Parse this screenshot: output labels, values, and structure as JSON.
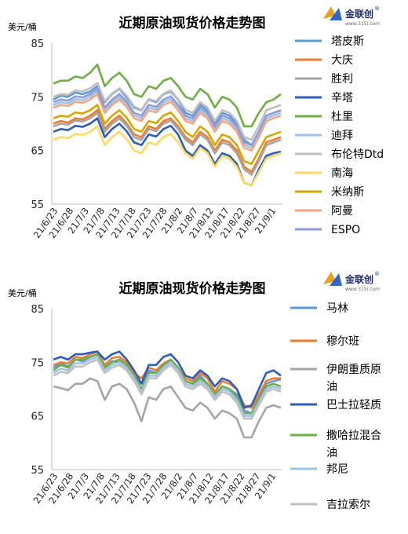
{
  "brand": {
    "name": "金联创",
    "registered": "®",
    "url": "www.315i.com"
  },
  "chart_data": [
    {
      "type": "line",
      "title": "近期原油现货价格走势图",
      "ylabel": "美元/桶",
      "ylim": [
        55,
        85
      ],
      "yticks": [
        55,
        65,
        75,
        85
      ],
      "xtick_labels": [
        "21/6/23",
        "21/6/28",
        "21/7/3",
        "21/7/8",
        "21/7/13",
        "21/7/18",
        "21/7/23",
        "21/7/28",
        "21/8/2",
        "21/8/7",
        "21/8/12",
        "21/8/17",
        "21/8/22",
        "21/8/27",
        "21/9/1"
      ],
      "legend_position": "right",
      "series": [
        {
          "name": "塔皮斯",
          "color": "#5b9bd5",
          "values": [
            74.5,
            75.2,
            75.0,
            75.8,
            75.5,
            76.0,
            77.0,
            74.0,
            75.5,
            76.5,
            74.8,
            73.0,
            72.5,
            74.5,
            74.0,
            75.5,
            76.0,
            74.5,
            72.0,
            71.5,
            73.5,
            72.5,
            70.0,
            72.0,
            71.5,
            70.0,
            67.0,
            66.0,
            68.5,
            71.5,
            72.0,
            72.5
          ]
        },
        {
          "name": "大庆",
          "color": "#ed7d31",
          "values": [
            70.0,
            70.5,
            70.2,
            71.0,
            70.8,
            71.5,
            72.5,
            69.0,
            70.5,
            71.5,
            70.0,
            68.0,
            67.5,
            69.5,
            69.0,
            70.5,
            71.0,
            69.5,
            67.5,
            66.5,
            68.5,
            67.5,
            65.0,
            67.0,
            66.5,
            65.0,
            62.0,
            61.0,
            63.5,
            66.5,
            67.0,
            67.5
          ]
        },
        {
          "name": "胜利",
          "color": "#a5a5a5",
          "values": [
            69.5,
            70.0,
            69.8,
            70.6,
            70.4,
            71.0,
            72.0,
            68.5,
            70.0,
            71.0,
            69.6,
            67.5,
            67.0,
            69.0,
            68.6,
            70.0,
            70.6,
            69.0,
            67.0,
            66.0,
            68.0,
            67.0,
            64.5,
            66.5,
            66.0,
            64.5,
            61.5,
            60.5,
            63.0,
            66.0,
            66.5,
            67.0
          ]
        },
        {
          "name": "辛塔",
          "color": "#2e5cb8",
          "values": [
            68.5,
            69.0,
            68.8,
            69.6,
            69.4,
            70.0,
            71.0,
            67.5,
            69.0,
            70.0,
            68.6,
            66.5,
            66.0,
            68.0,
            67.6,
            69.0,
            69.6,
            68.0,
            65.0,
            64.0,
            66.0,
            65.0,
            62.5,
            64.5,
            64.0,
            62.5,
            59.0,
            58.5,
            61.5,
            64.0,
            64.5,
            64.8
          ]
        },
        {
          "name": "杜里",
          "color": "#70ad47",
          "values": [
            77.5,
            78.0,
            78.0,
            78.8,
            78.5,
            79.5,
            81.0,
            77.0,
            78.5,
            79.5,
            78.0,
            75.5,
            75.0,
            77.0,
            76.5,
            78.0,
            78.5,
            77.0,
            75.0,
            74.5,
            76.5,
            75.5,
            73.0,
            75.0,
            74.5,
            73.0,
            69.5,
            69.5,
            72.0,
            74.0,
            74.5,
            75.5
          ]
        },
        {
          "name": "迪拜",
          "color": "#9dc3e6",
          "values": [
            73.5,
            74.0,
            73.8,
            74.6,
            74.4,
            75.0,
            76.0,
            72.5,
            74.0,
            75.0,
            73.6,
            71.5,
            71.0,
            73.0,
            72.6,
            74.0,
            74.6,
            73.0,
            71.0,
            70.5,
            72.5,
            71.5,
            69.0,
            71.0,
            70.5,
            69.0,
            66.0,
            65.5,
            68.0,
            71.0,
            71.5,
            72.0
          ]
        },
        {
          "name": "布伦特Dtd",
          "color": "#bfbfbf",
          "values": [
            75.0,
            75.5,
            75.4,
            76.2,
            76.0,
            76.6,
            77.6,
            74.2,
            75.6,
            76.6,
            75.2,
            73.2,
            72.6,
            74.6,
            74.2,
            75.6,
            76.2,
            74.6,
            72.6,
            72.0,
            74.0,
            73.0,
            70.5,
            72.5,
            72.0,
            70.5,
            67.5,
            67.0,
            69.5,
            72.5,
            73.0,
            73.5
          ]
        },
        {
          "name": "南海",
          "color": "#ffd966",
          "values": [
            67.0,
            67.5,
            67.3,
            68.1,
            67.9,
            68.5,
            69.5,
            66.0,
            67.5,
            68.5,
            67.1,
            65.0,
            64.5,
            66.5,
            66.1,
            67.5,
            68.1,
            66.5,
            64.5,
            63.5,
            65.5,
            64.5,
            62.0,
            64.0,
            63.5,
            62.0,
            59.0,
            58.5,
            61.0,
            63.5,
            64.0,
            64.5
          ]
        },
        {
          "name": "米纳斯",
          "color": "#d6a600",
          "values": [
            71.0,
            71.5,
            71.3,
            72.1,
            71.9,
            72.5,
            73.5,
            70.0,
            71.5,
            72.5,
            71.1,
            69.0,
            68.5,
            70.5,
            70.1,
            71.5,
            72.1,
            70.5,
            68.5,
            67.5,
            69.5,
            68.5,
            66.0,
            68.0,
            67.5,
            66.0,
            63.0,
            62.5,
            65.0,
            67.5,
            68.0,
            68.5
          ]
        },
        {
          "name": "阿曼",
          "color": "#f4a582",
          "values": [
            73.0,
            73.5,
            73.3,
            74.1,
            73.9,
            74.5,
            75.5,
            72.0,
            73.5,
            74.5,
            73.1,
            71.0,
            70.5,
            72.5,
            72.1,
            73.5,
            74.1,
            72.5,
            70.5,
            70.0,
            72.0,
            71.0,
            68.5,
            70.5,
            70.0,
            68.5,
            65.5,
            65.0,
            67.5,
            70.5,
            71.0,
            71.5
          ]
        },
        {
          "name": "ESPO",
          "color": "#8e9bd9",
          "values": [
            74.0,
            74.5,
            74.3,
            75.1,
            74.9,
            75.5,
            76.5,
            73.0,
            74.5,
            75.5,
            74.1,
            72.0,
            71.5,
            73.5,
            73.1,
            74.5,
            75.1,
            73.5,
            71.5,
            71.0,
            73.0,
            72.0,
            69.5,
            71.5,
            71.0,
            69.5,
            66.5,
            66.0,
            68.5,
            71.5,
            72.0,
            72.5
          ]
        }
      ]
    },
    {
      "type": "line",
      "title": "近期原油现货价格走势图",
      "ylabel": "美元/桶",
      "ylim": [
        55,
        85
      ],
      "yticks": [
        55,
        65,
        75,
        85
      ],
      "xtick_labels": [
        "21/6/23",
        "21/6/28",
        "21/7/3",
        "21/7/8",
        "21/7/13",
        "21/7/18",
        "21/7/23",
        "21/7/28",
        "21/8/2",
        "21/8/7",
        "21/8/12",
        "21/8/17",
        "21/8/22",
        "21/8/27",
        "21/9/1"
      ],
      "legend_position": "right",
      "series": [
        {
          "name": "马林",
          "color": "#5b9bd5",
          "values": [
            74.0,
            74.8,
            74.2,
            75.5,
            75.2,
            76.0,
            76.5,
            74.0,
            75.2,
            75.0,
            74.0,
            72.5,
            71.0,
            73.5,
            73.0,
            74.0,
            75.0,
            73.5,
            71.5,
            71.0,
            72.5,
            71.0,
            69.0,
            70.5,
            70.0,
            69.0,
            66.0,
            65.5,
            68.5,
            71.0,
            71.5,
            71.8
          ]
        },
        {
          "name": "穆尔班",
          "color": "#ed7d31",
          "values": [
            74.5,
            75.0,
            74.8,
            76.0,
            75.8,
            76.5,
            77.0,
            74.5,
            75.8,
            76.0,
            75.0,
            73.0,
            72.0,
            74.0,
            73.5,
            74.8,
            75.5,
            74.0,
            72.0,
            71.5,
            73.0,
            72.0,
            69.5,
            71.5,
            71.0,
            70.0,
            67.0,
            66.5,
            69.0,
            71.5,
            72.0,
            72.0
          ]
        },
        {
          "name": "伊朗重质原油",
          "color": "#a5a5a5",
          "values": [
            70.5,
            70.2,
            69.8,
            71.0,
            71.0,
            72.0,
            71.5,
            68.0,
            70.5,
            71.0,
            70.0,
            67.5,
            64.0,
            68.5,
            68.0,
            70.0,
            70.5,
            68.5,
            66.5,
            66.0,
            67.5,
            66.5,
            64.5,
            66.0,
            65.5,
            64.5,
            61.0,
            61.0,
            64.0,
            66.5,
            67.0,
            66.5
          ]
        },
        {
          "name": "巴士拉轻质",
          "color": "#2e5cb8",
          "values": [
            75.5,
            76.0,
            75.5,
            76.5,
            76.5,
            76.8,
            77.0,
            75.5,
            76.5,
            77.0,
            75.5,
            73.5,
            71.0,
            74.5,
            74.5,
            76.0,
            76.5,
            75.0,
            72.5,
            72.0,
            73.5,
            72.5,
            70.5,
            72.0,
            71.5,
            70.0,
            66.5,
            67.0,
            70.0,
            73.0,
            73.5,
            72.5
          ]
        },
        {
          "name": "撒哈拉混合油",
          "color": "#70ad47",
          "values": [
            73.5,
            74.5,
            74.0,
            75.5,
            75.5,
            76.0,
            76.5,
            74.0,
            75.0,
            75.5,
            74.5,
            72.5,
            70.0,
            73.0,
            73.0,
            74.5,
            75.5,
            74.0,
            71.5,
            71.0,
            72.0,
            71.0,
            69.0,
            70.5,
            70.0,
            68.5,
            65.5,
            65.5,
            68.0,
            70.5,
            71.0,
            70.5
          ]
        },
        {
          "name": "邦尼",
          "color": "#9dc3e6",
          "values": [
            73.0,
            73.8,
            73.5,
            74.8,
            74.8,
            75.5,
            76.0,
            73.5,
            74.5,
            75.0,
            74.0,
            72.0,
            69.5,
            72.5,
            72.5,
            74.0,
            75.0,
            73.5,
            71.0,
            70.5,
            71.5,
            70.5,
            68.5,
            70.0,
            69.5,
            68.0,
            65.0,
            65.0,
            67.5,
            70.0,
            70.5,
            70.0
          ]
        },
        {
          "name": "吉拉索尔",
          "color": "#c0c0c0",
          "values": [
            72.5,
            73.2,
            73.0,
            74.2,
            74.2,
            75.0,
            75.5,
            73.0,
            74.0,
            74.5,
            73.5,
            71.5,
            69.0,
            72.0,
            72.0,
            73.5,
            74.5,
            73.0,
            70.5,
            70.0,
            71.0,
            70.0,
            68.0,
            69.5,
            69.0,
            67.5,
            64.5,
            64.5,
            67.0,
            69.5,
            70.0,
            69.5
          ]
        }
      ]
    }
  ]
}
